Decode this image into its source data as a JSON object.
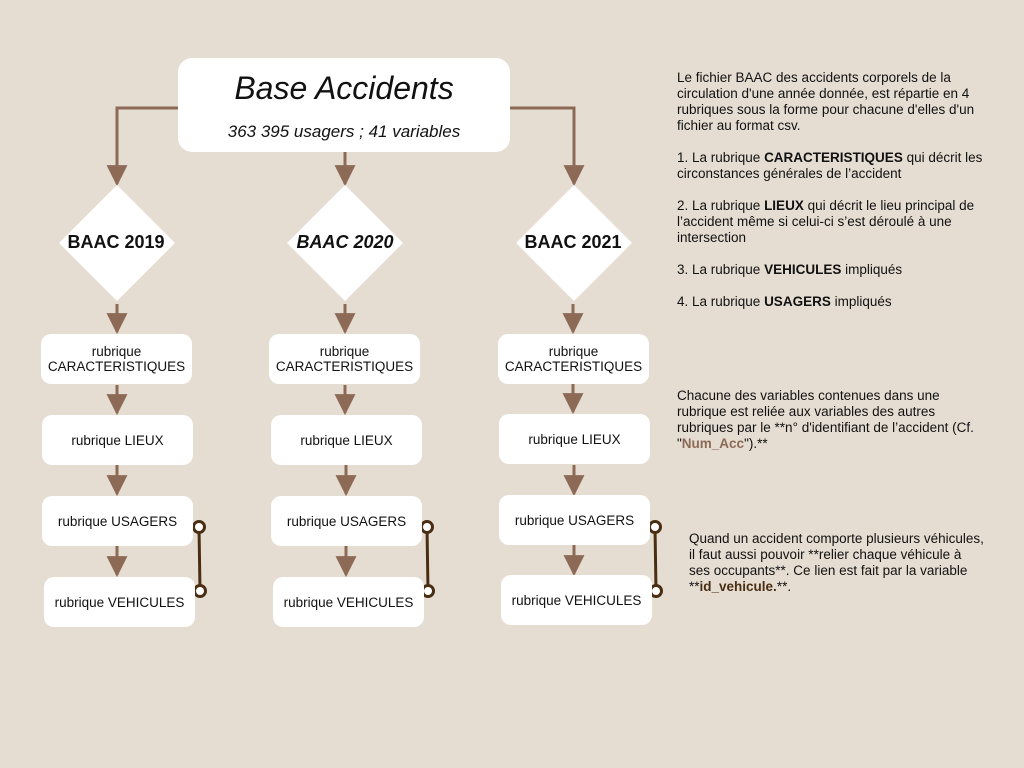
{
  "title": {
    "main": "Base Accidents",
    "sub": "363 395 usagers ; 41 variables"
  },
  "years": [
    {
      "label": "BAAC 2019",
      "italic": false
    },
    {
      "label": "BAAC 2020",
      "italic": true
    },
    {
      "label": "BAAC 2021",
      "italic": false
    }
  ],
  "rubriques": {
    "caracteristiques": "rubrique CARACTERISTIQUES",
    "lieux": "rubrique LIEUX",
    "usagers": "rubrique USAGERS",
    "vehicules": "rubrique VEHICULES"
  },
  "description": {
    "intro": "Le fichier BAAC des accidents corporels de la circulation d'une année donnée, est répartie en 4 rubriques sous la forme pour chacune d'elles d'un fichier au format csv.",
    "item1_prefix": "1. La rubrique ",
    "item1_kw": "CARACTERISTIQUES",
    "item1_suffix": " qui décrit les circonstances générales de l’accident",
    "item2_prefix": "2. La rubrique ",
    "item2_kw": "LIEUX",
    "item2_suffix": " qui décrit le lieu principal de l’accident même si celui-ci s’est déroulé à une intersection",
    "item3_prefix": "3. La rubrique ",
    "item3_kw": "VEHICULES",
    "item3_suffix": " impliqués",
    "item4_prefix": "4. La rubrique ",
    "item4_kw": "USAGERS",
    "item4_suffix": " impliqués"
  },
  "link_note": {
    "prefix": "Chacune des variables contenues dans une rubrique est reliée aux variables des autres rubriques par le **n° d'identifiant de l’accident (Cf. \"",
    "key": "Num_Acc",
    "suffix": "\").**"
  },
  "vehicle_note": {
    "prefix": "Quand un accident comporte plusieurs véhicules, il faut aussi pouvoir **relier chaque véhicule à ses occupants**. Ce lien est fait par la variable **",
    "key": "id_vehicule.",
    "suffix": "**."
  },
  "colors": {
    "background": "#e6ddd2",
    "arrow": "#8c6a56",
    "connector": "#4a2e14",
    "key_numacc": "#8c6a56",
    "key_idvehicule": "#4a2e14"
  }
}
